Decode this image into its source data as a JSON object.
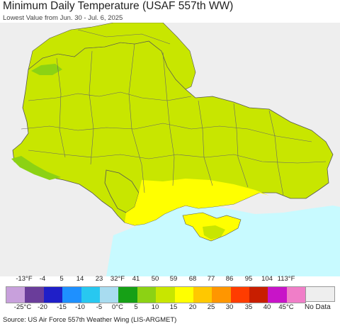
{
  "header": {
    "title": "Minimum Daily Temperature (USAF 557th WW)",
    "subtitle": "Lowest Value from Jun. 30 - Jul. 6, 2025"
  },
  "legend": {
    "fahrenheit_ticks": [
      "-13°F",
      "-4",
      "5",
      "14",
      "23",
      "32°F",
      "41",
      "50",
      "59",
      "68",
      "77",
      "86",
      "95",
      "104",
      "113°F"
    ],
    "celsius_ticks": [
      "-25°C",
      "-20",
      "-15",
      "-10",
      "-5",
      "0°C",
      "5",
      "10",
      "15",
      "20",
      "25",
      "30",
      "35",
      "40",
      "45°C"
    ],
    "colors": [
      "#c8a0dc",
      "#6a3d9a",
      "#1f1fc8",
      "#1e90ff",
      "#28c8f0",
      "#a8dcf0",
      "#16a016",
      "#8cd214",
      "#c8e600",
      "#ffff00",
      "#ffc800",
      "#ff9600",
      "#ff3c00",
      "#c81e00",
      "#c814c8",
      "#f07ec8"
    ],
    "no_data_label": "No Data",
    "no_data_color": "#eeeeee"
  },
  "map": {
    "colors": {
      "water": "#c8faff",
      "no_data_land": "#eeeeee",
      "cool_zone": "#c8e600",
      "warm_zone": "#ffff00",
      "green_zone": "#8cd214",
      "border": "#555555"
    }
  },
  "footer": {
    "source": "Source: US Air Force 557th Weather Wing (LIS-ARGMET)"
  }
}
